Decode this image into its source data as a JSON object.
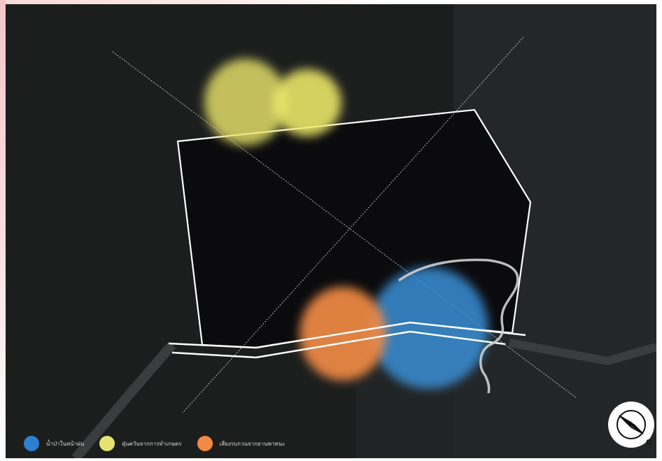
{
  "map": {
    "background_color": "#1c1e1e",
    "plot_color": "#0b0b0d",
    "boundary_color": "#ffffff"
  },
  "zones": [
    {
      "kind": "dust",
      "color": "#e8e36a"
    },
    {
      "kind": "dust",
      "color": "#eeea6a"
    },
    {
      "kind": "noise",
      "color": "#f08a45"
    },
    {
      "kind": "rain-water",
      "color": "#3a8fd6"
    }
  ],
  "legend": {
    "items": [
      {
        "label": "น้ำป่าในหน้าฝน",
        "color": "#2f7fcf"
      },
      {
        "label": "ฝุ่นควันจากการทำเกษตร",
        "color": "#e5e272"
      },
      {
        "label": "เสียงรบกวนจากยานพาหนะ",
        "color": "#f08a45"
      }
    ]
  },
  "compass": {
    "icon": "compass-icon",
    "background": "#ffffff"
  }
}
